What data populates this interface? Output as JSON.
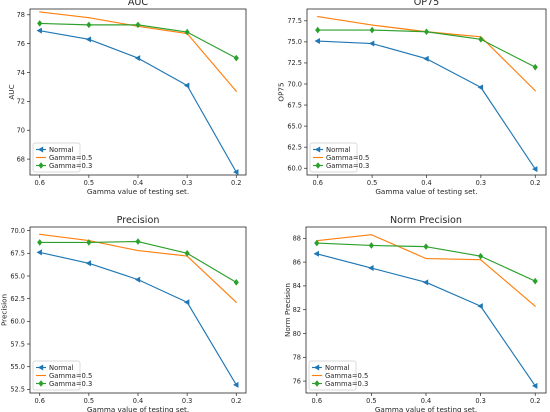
{
  "chart_data": [
    {
      "type": "line",
      "title": "AUC",
      "xlabel": "Gamma value of testing set.",
      "ylabel": "AUC",
      "categories": [
        "0.6",
        "0.5",
        "0.4",
        "0.3",
        "0.2"
      ],
      "ylim": [
        66.9,
        78.4
      ],
      "yticks": [
        68,
        70,
        72,
        74,
        76,
        78
      ],
      "ytick_labels": [
        "68",
        "70",
        "72",
        "74",
        "76",
        "78"
      ],
      "legend_position": "lower-left",
      "series": [
        {
          "name": "Normal",
          "color": "#1f77b4",
          "marker": "left-triangle",
          "values": [
            76.9,
            76.3,
            75.0,
            73.1,
            67.1
          ]
        },
        {
          "name": "Gamma=0.5",
          "color": "#ff7f0e",
          "marker": "none",
          "values": [
            78.2,
            77.8,
            77.2,
            76.7,
            72.7
          ]
        },
        {
          "name": "Gamma=0.3",
          "color": "#2ca02c",
          "marker": "diamond",
          "values": [
            77.4,
            77.3,
            77.3,
            76.8,
            75.0
          ]
        }
      ]
    },
    {
      "type": "line",
      "title": "OP75",
      "xlabel": "Gamma value of testing set.",
      "ylabel": "OP75",
      "categories": [
        "0.6",
        "0.5",
        "0.4",
        "0.3",
        "0.2"
      ],
      "ylim": [
        59.2,
        78.9
      ],
      "yticks": [
        60.0,
        62.5,
        65.0,
        67.5,
        70.0,
        72.5,
        75.0,
        77.5
      ],
      "ytick_labels": [
        "60.0",
        "62.5",
        "65.0",
        "67.5",
        "70.0",
        "72.5",
        "75.0",
        "77.5"
      ],
      "legend_position": "lower-left",
      "series": [
        {
          "name": "Normal",
          "color": "#1f77b4",
          "marker": "left-triangle",
          "values": [
            75.1,
            74.8,
            73.0,
            69.6,
            59.9
          ]
        },
        {
          "name": "Gamma=0.5",
          "color": "#ff7f0e",
          "marker": "none",
          "values": [
            78.0,
            77.0,
            76.2,
            75.6,
            69.2
          ]
        },
        {
          "name": "Gamma=0.3",
          "color": "#2ca02c",
          "marker": "diamond",
          "values": [
            76.4,
            76.4,
            76.2,
            75.3,
            72.0
          ]
        }
      ]
    },
    {
      "type": "line",
      "title": "Precision",
      "xlabel": "Gamma value of testing set.",
      "ylabel": "Precision",
      "categories": [
        "0.6",
        "0.5",
        "0.4",
        "0.3",
        "0.2"
      ],
      "ylim": [
        52.1,
        70.4
      ],
      "yticks": [
        52.5,
        55.0,
        57.5,
        60.0,
        62.5,
        65.0,
        67.5,
        70.0
      ],
      "ytick_labels": [
        "52.5",
        "55.0",
        "57.5",
        "60.0",
        "62.5",
        "65.0",
        "67.5",
        "70.0"
      ],
      "legend_position": "lower-left",
      "series": [
        {
          "name": "Normal",
          "color": "#1f77b4",
          "marker": "left-triangle",
          "values": [
            67.6,
            66.4,
            64.6,
            62.1,
            53.0
          ]
        },
        {
          "name": "Gamma=0.5",
          "color": "#ff7f0e",
          "marker": "none",
          "values": [
            69.6,
            68.9,
            67.8,
            67.2,
            62.1
          ]
        },
        {
          "name": "Gamma=0.3",
          "color": "#2ca02c",
          "marker": "diamond",
          "values": [
            68.7,
            68.7,
            68.8,
            67.5,
            64.3
          ]
        }
      ]
    },
    {
      "type": "line",
      "title": "Norm Precision",
      "xlabel": "Gamma value of testing set.",
      "ylabel": "Norm Precision",
      "categories": [
        "0.6",
        "0.5",
        "0.4",
        "0.3",
        "0.2"
      ],
      "ylim": [
        75.0,
        88.95
      ],
      "yticks": [
        76,
        78,
        80,
        82,
        84,
        86,
        88
      ],
      "ytick_labels": [
        "76",
        "78",
        "80",
        "82",
        "84",
        "86",
        "88"
      ],
      "legend_position": "lower-left",
      "series": [
        {
          "name": "Normal",
          "color": "#1f77b4",
          "marker": "left-triangle",
          "values": [
            86.7,
            85.5,
            84.3,
            82.3,
            75.6
          ]
        },
        {
          "name": "Gamma=0.5",
          "color": "#ff7f0e",
          "marker": "none",
          "values": [
            87.8,
            88.3,
            86.3,
            86.2,
            82.3
          ]
        },
        {
          "name": "Gamma=0.3",
          "color": "#2ca02c",
          "marker": "diamond",
          "values": [
            87.6,
            87.4,
            87.3,
            86.5,
            84.4
          ]
        }
      ]
    }
  ]
}
